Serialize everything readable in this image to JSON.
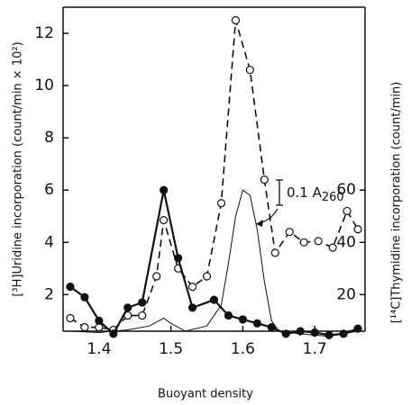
{
  "chart_data": {
    "type": "line",
    "x_label": "Buoyant density",
    "y_label": "[³H]Uridine incorporation (count/min × 10²)",
    "y2_label": "[¹⁴C]Thymidine incorporation (count/min)",
    "xlim": [
      1.35,
      1.77
    ],
    "xticks": [
      1.4,
      1.5,
      1.6,
      1.7
    ],
    "ylim": [
      0.6,
      13.0
    ],
    "yticks": [
      2,
      4,
      6,
      8,
      10,
      12
    ],
    "y2lim": [
      6,
      130
    ],
    "y2ticks": [
      20,
      40,
      60
    ],
    "annotation": {
      "text": "0.1 A",
      "subscript": "260"
    },
    "series": [
      {
        "style": "open-dashed",
        "color": "#111",
        "x": [
          1.36,
          1.38,
          1.4,
          1.42,
          1.44,
          1.46,
          1.48,
          1.49,
          1.51,
          1.53,
          1.55,
          1.57,
          1.59,
          1.61,
          1.63,
          1.645,
          1.665,
          1.685,
          1.705,
          1.725,
          1.745,
          1.76
        ],
        "values": [
          1.1,
          0.75,
          0.75,
          0.65,
          1.2,
          1.2,
          2.7,
          4.85,
          3.0,
          2.3,
          2.7,
          5.5,
          12.5,
          10.6,
          6.4,
          3.6,
          4.4,
          4.0,
          4.05,
          3.8,
          5.2,
          4.5
        ]
      },
      {
        "style": "filled-solid",
        "color": "#111",
        "axis": "y2",
        "x": [
          1.36,
          1.38,
          1.4,
          1.42,
          1.44,
          1.46,
          1.49,
          1.51,
          1.53,
          1.56,
          1.58,
          1.6,
          1.62,
          1.64,
          1.66,
          1.68,
          1.7,
          1.72,
          1.74,
          1.76
        ],
        "values": [
          23,
          19,
          10,
          5,
          15,
          17,
          60,
          34,
          15,
          18,
          12,
          10.5,
          9,
          7.5,
          5,
          6,
          5.5,
          4.5,
          5,
          7
        ]
      },
      {
        "style": "thin",
        "color": "#111",
        "x": [
          1.36,
          1.4,
          1.44,
          1.47,
          1.49,
          1.5,
          1.52,
          1.55,
          1.57,
          1.58,
          1.59,
          1.6,
          1.61,
          1.62,
          1.63,
          1.64,
          1.65,
          1.68,
          1.72,
          1.76
        ],
        "values": [
          0.6,
          0.55,
          0.65,
          0.8,
          1.1,
          0.9,
          0.6,
          0.8,
          1.6,
          3.2,
          5.0,
          6.0,
          5.8,
          4.5,
          2.5,
          1.0,
          0.6,
          0.5,
          0.4,
          0.6
        ]
      }
    ]
  }
}
